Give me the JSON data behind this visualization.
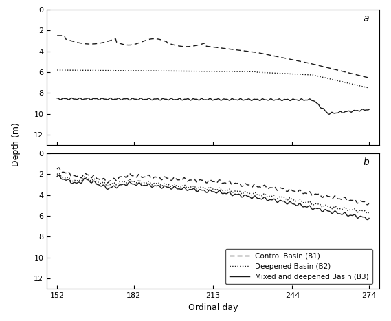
{
  "title_a": "a",
  "title_b": "b",
  "xlabel": "Ordinal day",
  "ylabel": "Depth (m)",
  "xlim": [
    148,
    278
  ],
  "ylim_a": [
    13,
    0
  ],
  "ylim_b": [
    13,
    0
  ],
  "xticks": [
    152,
    182,
    213,
    244,
    274
  ],
  "yticks_a": [
    0,
    2,
    4,
    6,
    8,
    10,
    12
  ],
  "yticks_b": [
    0,
    2,
    4,
    6,
    8,
    10,
    12
  ],
  "background_color": "#ffffff",
  "line_color": "#1a1a1a",
  "legend_labels": [
    "Control Basin (B1)",
    "Deepened Basin (B2)",
    "Mixed and deepened Basin (B3)"
  ]
}
